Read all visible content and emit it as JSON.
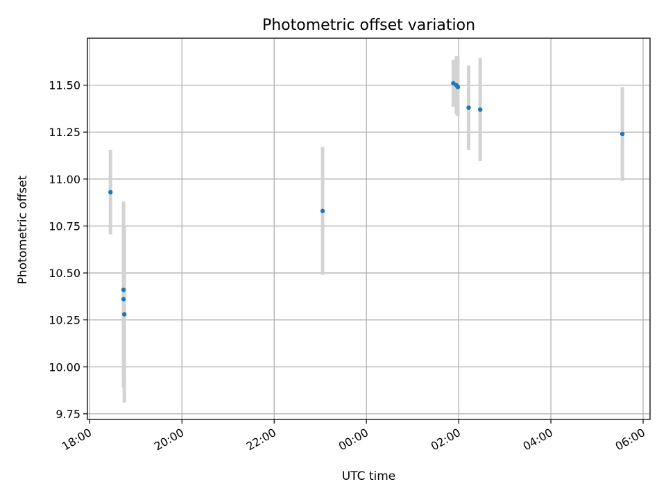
{
  "chart_data": {
    "type": "scatter",
    "title": "Photometric offset variation",
    "xlabel": "UTC time",
    "ylabel": "Photometric offset",
    "x_axis": {
      "kind": "time",
      "range": [
        "17:57",
        "06:09"
      ],
      "ticks": [
        {
          "value": "18:00",
          "label": "18:00"
        },
        {
          "value": "20:00",
          "label": "20:00"
        },
        {
          "value": "22:00",
          "label": "22:00"
        },
        {
          "value": "00:00",
          "label": "00:00"
        },
        {
          "value": "02:00",
          "label": "02:00"
        },
        {
          "value": "04:00",
          "label": "04:00"
        },
        {
          "value": "06:00",
          "label": "06:00"
        }
      ]
    },
    "y_axis": {
      "range": [
        9.72,
        11.75
      ],
      "ticks": [
        {
          "value": 9.75,
          "label": "9.75"
        },
        {
          "value": 10.0,
          "label": "10.00"
        },
        {
          "value": 10.25,
          "label": "10.25"
        },
        {
          "value": 10.5,
          "label": "10.50"
        },
        {
          "value": 10.75,
          "label": "10.75"
        },
        {
          "value": 11.0,
          "label": "11.00"
        },
        {
          "value": 11.25,
          "label": "11.25"
        },
        {
          "value": 11.5,
          "label": "11.50"
        }
      ]
    },
    "grid": true,
    "series": [
      {
        "marker_color": "#1f77b4",
        "errorbar_color": "#d3d3d3",
        "points": [
          {
            "x": "18:27",
            "y": 10.93,
            "err": 0.225
          },
          {
            "x": "18:44",
            "y": 10.41,
            "err": 0.47
          },
          {
            "x": "18:44",
            "y": 10.36,
            "err": 0.47
          },
          {
            "x": "18:45",
            "y": 10.28,
            "err": 0.47
          },
          {
            "x": "23:03",
            "y": 10.83,
            "err": 0.34
          },
          {
            "x": "01:53",
            "y": 11.51,
            "err": 0.125
          },
          {
            "x": "01:57",
            "y": 11.5,
            "err": 0.155
          },
          {
            "x": "01:59",
            "y": 11.49,
            "err": 0.155
          },
          {
            "x": "02:13",
            "y": 11.38,
            "err": 0.225
          },
          {
            "x": "02:28",
            "y": 11.37,
            "err": 0.275
          },
          {
            "x": "05:33",
            "y": 11.24,
            "err": 0.25
          }
        ]
      }
    ]
  }
}
